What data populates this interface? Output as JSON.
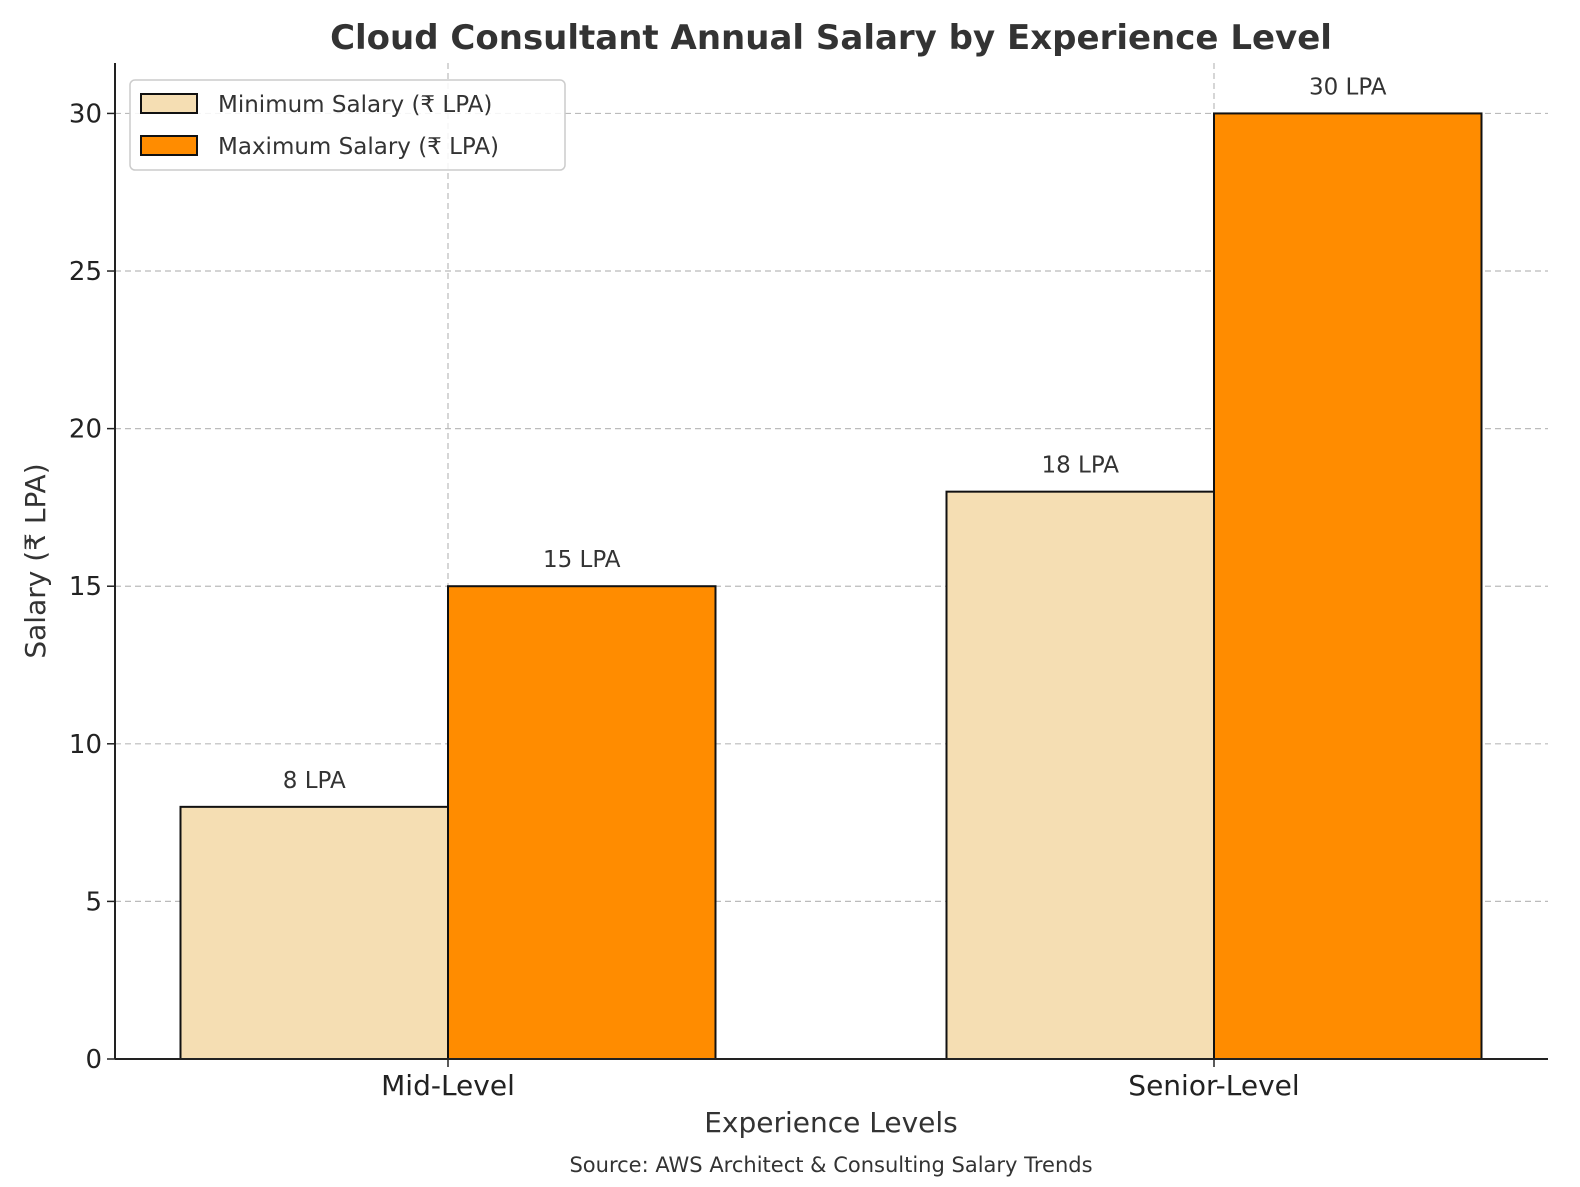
{
  "chart_data": {
    "type": "bar",
    "title": "Cloud Consultant Annual Salary by Experience Level",
    "xlabel": "Experience Levels",
    "ylabel": "Salary (₹ LPA)",
    "caption": "Source: AWS Architect & Consulting Salary Trends",
    "categories": [
      "Mid-Level",
      "Senior-Level"
    ],
    "series": [
      {
        "name": "Minimum Salary (₹ LPA)",
        "values": [
          8,
          18
        ],
        "labels": [
          "8 LPA",
          "18 LPA"
        ],
        "color": "#F5DEB3"
      },
      {
        "name": "Maximum Salary (₹ LPA)",
        "values": [
          15,
          30
        ],
        "labels": [
          "15 LPA",
          "30 LPA"
        ],
        "color": "#FF8C00"
      }
    ],
    "ylim": [
      0,
      31.6
    ],
    "yticks": [
      0,
      5,
      10,
      15,
      20,
      25,
      30
    ],
    "grid": true,
    "legend": "top-left"
  }
}
